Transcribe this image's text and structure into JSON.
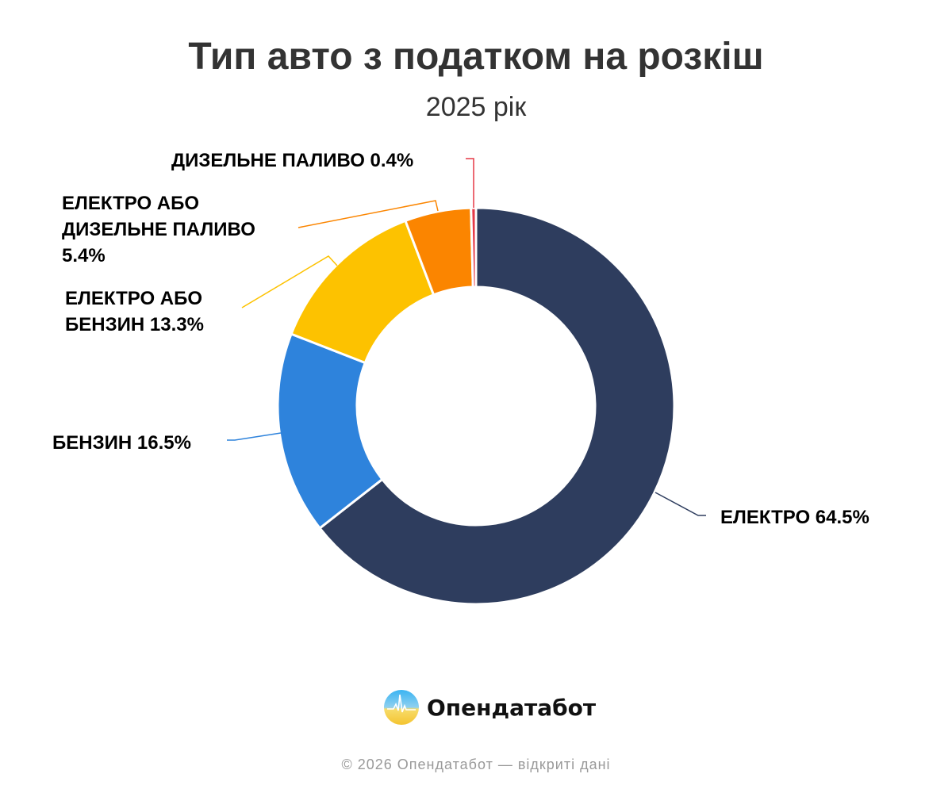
{
  "chart_data": {
    "type": "pie",
    "variant": "donut",
    "title": "Тип авто з податком на розкіш",
    "subtitle": "2025 рік",
    "categories": [
      "ЕЛЕКТРО",
      "БЕНЗИН",
      "ЕЛЕКТРО АБО БЕНЗИН",
      "ЕЛЕКТРО АБО ДИЗЕЛЬНЕ ПАЛИВО",
      "ДИЗЕЛЬНЕ ПАЛИВО"
    ],
    "values": [
      64.5,
      16.5,
      13.3,
      5.4,
      0.4
    ],
    "colors": [
      "#2e3d5e",
      "#2e83dc",
      "#fdc200",
      "#fb8500",
      "#e63946"
    ],
    "labels": [
      "ЕЛЕКТРО 64.5%",
      "БЕНЗИН 16.5%",
      "ЕЛЕКТРО АБО БЕНЗИН 13.3%",
      "ЕЛЕКТРО АБО ДИЗЕЛЬНЕ ПАЛИВО 5.4%",
      "ДИЗЕЛЬНЕ ПАЛИВО 0.4%"
    ],
    "label_lines": [
      [
        "ЕЛЕКТРО 64.5%"
      ],
      [
        "БЕНЗИН 16.5%"
      ],
      [
        "ЕЛЕКТРО АБО",
        "БЕНЗИН 13.3%"
      ],
      [
        "ЕЛЕКТРО АБО",
        "ДИЗЕЛЬНЕ ПАЛИВО",
        "5.4%"
      ],
      [
        "ДИЗЕЛЬНЕ ПАЛИВО 0.4%"
      ]
    ]
  },
  "brand": {
    "name": "Опендатабот"
  },
  "footer": "© 2026 Опендатабот — відкриті дані"
}
